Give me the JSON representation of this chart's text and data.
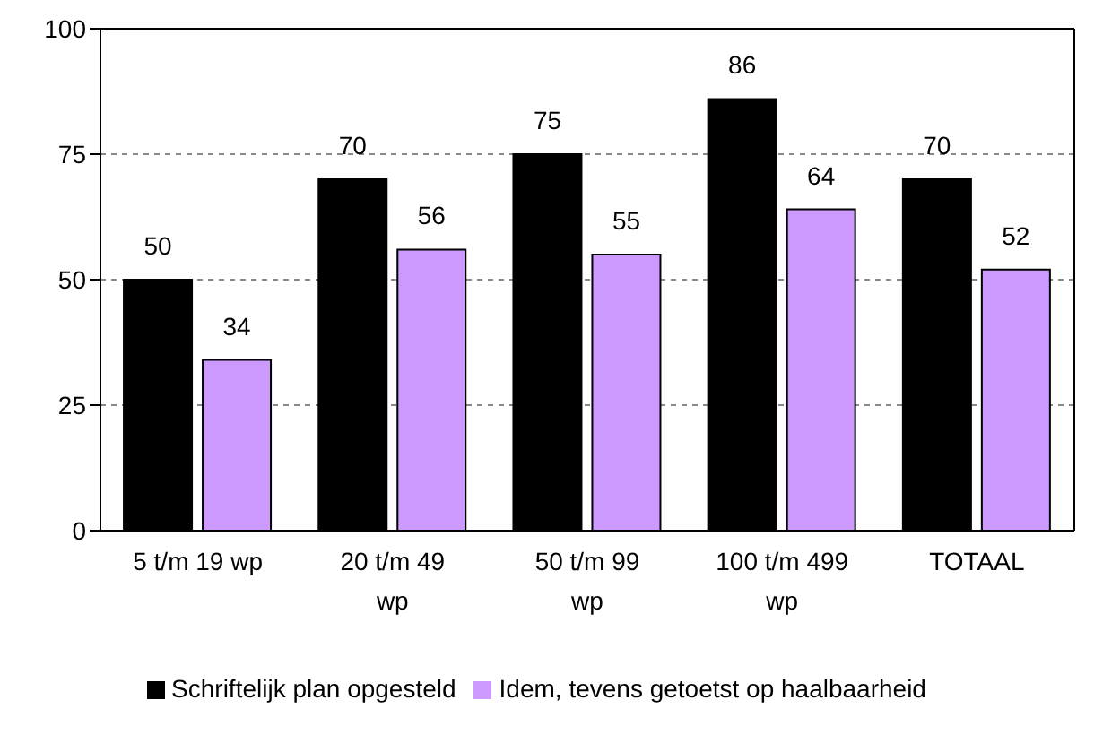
{
  "chart_data": {
    "type": "bar",
    "categories": [
      "5 t/m 19 wp",
      "20 t/m 49 wp",
      "50 t/m 99 wp",
      "100 t/m 499 wp",
      "TOTAAL"
    ],
    "series": [
      {
        "name": "Schriftelijk plan opgesteld",
        "color": "#000000",
        "values": [
          50,
          70,
          75,
          86,
          70
        ]
      },
      {
        "name": "Idem, tevens getoetst op haalbaarheid",
        "color": "#cc99ff",
        "values": [
          34,
          56,
          55,
          64,
          52
        ]
      }
    ],
    "ylim": [
      0,
      100
    ],
    "yticks": [
      0,
      25,
      50,
      75,
      100
    ],
    "grid": "y",
    "legend": "bottom",
    "data_labels": true
  }
}
